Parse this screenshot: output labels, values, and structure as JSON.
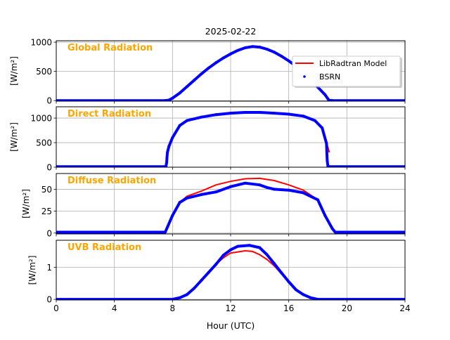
{
  "chart_data": {
    "type": "line",
    "title": "2025-02-22",
    "xlabel": "Hour (UTC)",
    "xlim": [
      0,
      24
    ],
    "xticks": [
      0,
      4,
      8,
      12,
      16,
      20,
      24
    ],
    "grid": true,
    "legend": {
      "placement": "top-right of first panel",
      "entries": [
        {
          "name": "LibRadtran Model",
          "style": "line",
          "color": "#ff0000"
        },
        {
          "name": "BSRN",
          "style": "dots",
          "color": "#0000ff"
        }
      ]
    },
    "colors": {
      "model": "#ff0000",
      "bsrn": "#0000ff",
      "panel_label": "#ffa500"
    },
    "panels": [
      {
        "label": "Global Radiation",
        "ylabel": "[W/m²]",
        "ylim": [
          -10,
          1025
        ],
        "yticks": [
          0,
          500,
          1000
        ],
        "model": {
          "x": [
            0,
            7.5,
            7.75,
            8,
            8.5,
            9,
            9.5,
            10,
            10.5,
            11,
            11.5,
            12,
            12.5,
            13,
            13.5,
            14,
            14.5,
            15,
            15.5,
            16,
            16.5,
            17,
            17.5,
            18,
            18.5,
            18.75,
            19,
            24
          ],
          "y": [
            0,
            0,
            5,
            40,
            130,
            240,
            350,
            460,
            560,
            650,
            730,
            800,
            860,
            900,
            920,
            915,
            880,
            830,
            760,
            680,
            590,
            480,
            360,
            230,
            100,
            10,
            0,
            0
          ]
        },
        "bsrn": {
          "x": [
            0,
            7.5,
            7.75,
            8,
            8.5,
            9,
            9.5,
            10,
            10.5,
            11,
            11.5,
            12,
            12.5,
            13,
            13.5,
            14,
            14.5,
            15,
            15.5,
            16,
            16.5,
            17,
            17.5,
            18,
            18.5,
            18.75,
            19,
            24
          ],
          "y": [
            0,
            0,
            8,
            40,
            130,
            240,
            350,
            460,
            560,
            650,
            730,
            800,
            860,
            905,
            925,
            915,
            880,
            830,
            760,
            680,
            590,
            480,
            360,
            230,
            100,
            10,
            0,
            0
          ]
        }
      },
      {
        "label": "Direct Radiation",
        "ylabel": "[W/m²]",
        "ylim": [
          0,
          1230
        ],
        "yticks": [
          0,
          500,
          1000
        ],
        "model": {
          "x": [
            7.65,
            7.75,
            8,
            8.5,
            9,
            10,
            11,
            12,
            13,
            14,
            15,
            16,
            17,
            17.8,
            18.3,
            18.6,
            18.8
          ],
          "y": [
            300,
            420,
            600,
            850,
            950,
            1020,
            1070,
            1100,
            1115,
            1115,
            1100,
            1080,
            1040,
            950,
            800,
            500,
            300
          ]
        },
        "bsrn": {
          "x": [
            0,
            7.55,
            7.6,
            7.62,
            7.65,
            7.75,
            8,
            8.5,
            9,
            10,
            11,
            12,
            13,
            14,
            15,
            16,
            17,
            17.8,
            18.3,
            18.6,
            18.62,
            18.65,
            18.7,
            24
          ],
          "y": [
            10,
            10,
            100,
            200,
            300,
            420,
            600,
            850,
            950,
            1020,
            1070,
            1100,
            1115,
            1115,
            1100,
            1080,
            1040,
            950,
            800,
            480,
            330,
            130,
            10,
            10
          ]
        }
      },
      {
        "label": "Diffuse Radiation",
        "ylabel": "[W/m²]",
        "ylim": [
          -1,
          68
        ],
        "yticks": [
          0,
          25,
          50
        ],
        "model": {
          "x": [
            7.5,
            8,
            8.5,
            9,
            10,
            11,
            12,
            13,
            14,
            15,
            16,
            17,
            18,
            18.5,
            19,
            19.2
          ],
          "y": [
            0,
            20,
            35,
            42,
            48,
            55,
            59,
            62,
            62.5,
            60,
            55,
            49,
            38,
            20,
            5,
            0
          ]
        },
        "bsrn": {
          "x": [
            0,
            7.5,
            8,
            8.5,
            9,
            10,
            11,
            12,
            13,
            14,
            14.5,
            15,
            16,
            17,
            18,
            18.5,
            19,
            19.2,
            24
          ],
          "y": [
            1,
            1,
            20,
            35,
            40,
            44,
            47,
            53,
            57,
            55,
            52,
            50,
            49,
            46,
            38,
            20,
            5,
            1,
            1
          ]
        }
      },
      {
        "label": "UVB Radiation",
        "ylabel": "[W/m²]",
        "ylim": [
          -0.02,
          1.85
        ],
        "yticks": [
          0,
          1
        ],
        "model": {
          "x": [
            0,
            8,
            8.5,
            9,
            9.5,
            10,
            10.5,
            11,
            11.5,
            12,
            13,
            13.5,
            14,
            14.5,
            15,
            15.5,
            16,
            16.5,
            17,
            17.5,
            18,
            24
          ],
          "y": [
            0,
            0,
            0.05,
            0.15,
            0.35,
            0.6,
            0.85,
            1.1,
            1.3,
            1.45,
            1.52,
            1.5,
            1.4,
            1.25,
            1.05,
            0.8,
            0.55,
            0.3,
            0.15,
            0.05,
            0,
            0
          ]
        },
        "bsrn": {
          "x": [
            0,
            8,
            8.5,
            9,
            9.5,
            10,
            10.5,
            11,
            11.5,
            12,
            12.5,
            13.3,
            14,
            14.5,
            15,
            15.5,
            16,
            16.5,
            17,
            17.5,
            18,
            24
          ],
          "y": [
            0,
            0,
            0.05,
            0.15,
            0.35,
            0.6,
            0.85,
            1.1,
            1.38,
            1.55,
            1.66,
            1.69,
            1.62,
            1.4,
            1.12,
            0.83,
            0.55,
            0.3,
            0.15,
            0.05,
            0,
            0
          ]
        }
      }
    ]
  }
}
